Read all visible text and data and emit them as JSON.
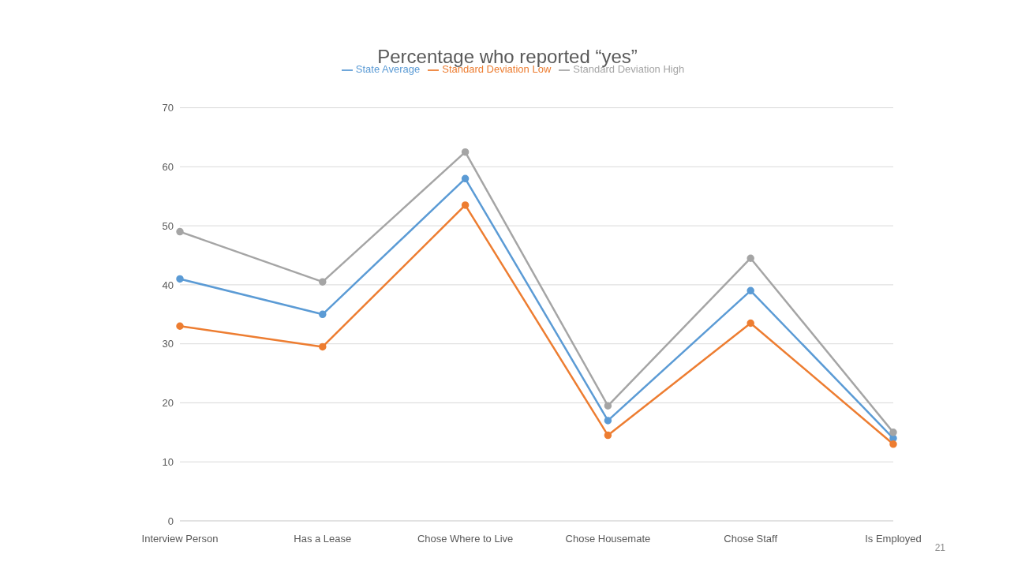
{
  "chart_data": {
    "type": "line",
    "title": "Percentage who reported “yes”",
    "categories": [
      "Interview Person",
      "Has a Lease",
      "Chose Where to Live",
      "Chose Housemate",
      "Chose Staff",
      "Is Employed"
    ],
    "series": [
      {
        "name": "State Average",
        "color": "#5b9bd5",
        "values": [
          41,
          35,
          58,
          17,
          39,
          14
        ]
      },
      {
        "name": "Standard Deviation Low",
        "color": "#ed7d31",
        "values": [
          33,
          29.5,
          53.5,
          14.5,
          33.5,
          13
        ]
      },
      {
        "name": "Standard Deviation High",
        "color": "#a5a5a5",
        "values": [
          49,
          40.5,
          62.5,
          19.5,
          44.5,
          15
        ]
      }
    ],
    "ylim": [
      0,
      70
    ],
    "yticks": [
      0,
      10,
      20,
      30,
      40,
      50,
      60,
      70
    ],
    "grid": "y",
    "legend": "top",
    "marker": "circle",
    "line_style": "solid",
    "annotations": [
      "21"
    ]
  }
}
